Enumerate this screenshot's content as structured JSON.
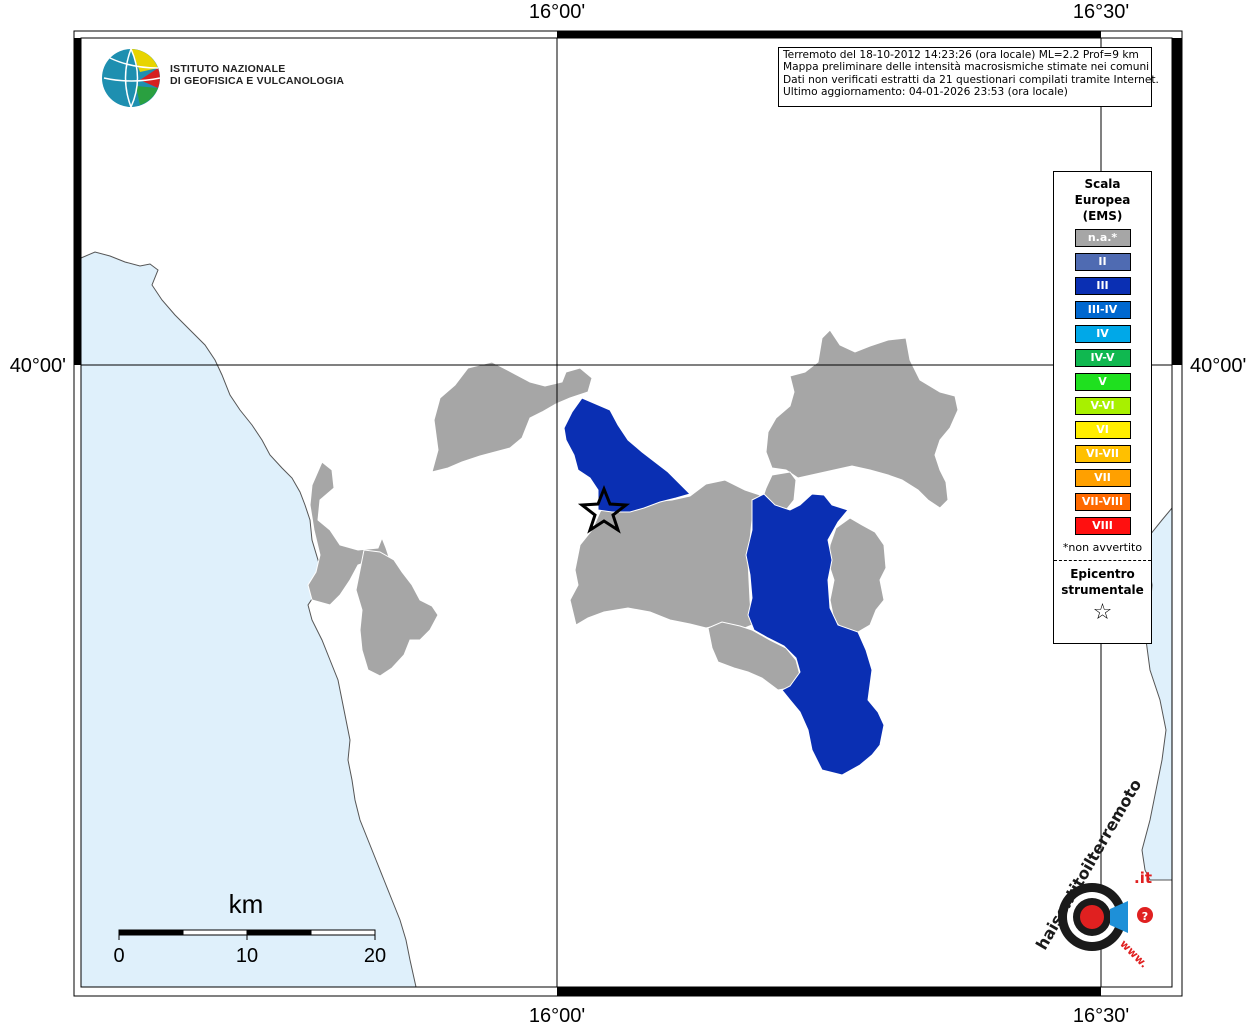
{
  "coordinates": {
    "lon_16_00": "16°00'",
    "lon_16_30": "16°30'",
    "lat_40_00": "40°00'"
  },
  "info_box": {
    "line1": "Terremoto del 18-10-2012 14:23:26 (ora locale) ML=2.2 Prof=9 km",
    "line2": "Mappa preliminare delle intensità macrosismiche stimate nei comuni",
    "line3": "Dati non verificati estratti da 21 questionari compilati tramite Internet.",
    "line4": "Ultimo aggiornamento: 04-01-2026 23:53 (ora locale)"
  },
  "ingv": {
    "line1": "ISTITUTO NAZIONALE",
    "line2": "DI GEOFISICA E VULCANOLOGIA"
  },
  "legend": {
    "title_line1": "Scala",
    "title_line2": "Europea",
    "title_line3": "(EMS)",
    "items": [
      {
        "label": "n.a.*",
        "color": "#a6a6a6"
      },
      {
        "label": "II",
        "color": "#4f6bb2"
      },
      {
        "label": "III",
        "color": "#0a2fb3"
      },
      {
        "label": "III-IV",
        "color": "#0068d0"
      },
      {
        "label": "IV",
        "color": "#00a8e8"
      },
      {
        "label": "IV-V",
        "color": "#10b850"
      },
      {
        "label": "V",
        "color": "#1fe01f"
      },
      {
        "label": "V-VI",
        "color": "#a8f000"
      },
      {
        "label": "VI",
        "color": "#ffee00"
      },
      {
        "label": "VI-VII",
        "color": "#ffc000"
      },
      {
        "label": "VII",
        "color": "#ffa000"
      },
      {
        "label": "VII-VIII",
        "color": "#ff6a00"
      },
      {
        "label": "VIII",
        "color": "#ff1010"
      }
    ],
    "note": "*non avvertito",
    "epicenter_line1": "Epicentro",
    "epicenter_line2": "strumentale"
  },
  "scale_bar": {
    "unit": "km",
    "tick0": "0",
    "tick10": "10",
    "tick20": "20"
  },
  "hsi_logo": {
    "text_main": "haisentitoilterremoto",
    "text_suffix": ".it",
    "text_www": "www."
  },
  "map_colors": {
    "sea": "#dff0fb",
    "na_fill": "#a6a6a6",
    "iii_fill": "#0a2fb3"
  }
}
